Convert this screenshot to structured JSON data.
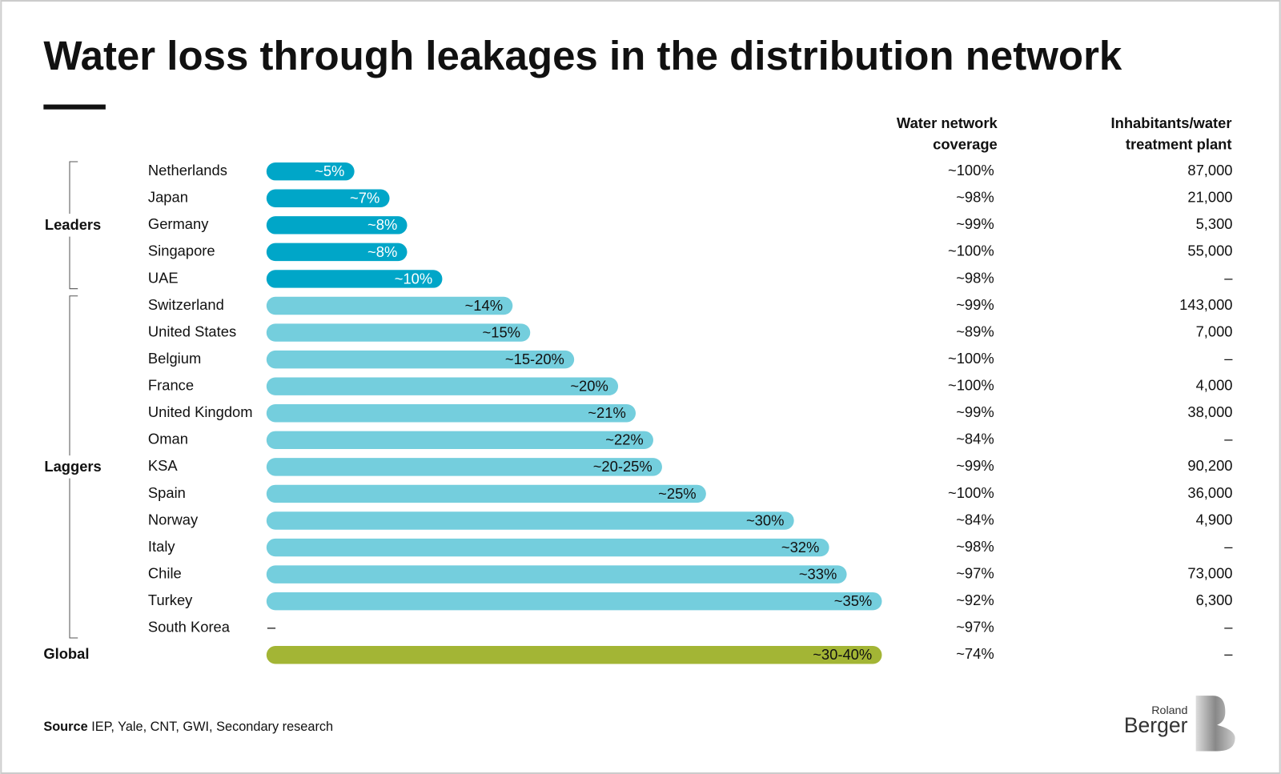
{
  "chart_data": {
    "type": "bar",
    "title": "Water loss through leakages in the distribution network",
    "categories": [
      "Netherlands",
      "Japan",
      "Germany",
      "Singapore",
      "UAE",
      "Switzerland",
      "United States",
      "Belgium",
      "France",
      "United Kingdom",
      "Oman",
      "KSA",
      "Spain",
      "Norway",
      "Italy",
      "Chile",
      "Turkey",
      "South Korea",
      "Global"
    ],
    "groups": [
      "Leaders",
      "Laggers"
    ],
    "values": [
      5,
      7,
      8,
      8,
      10,
      14,
      15,
      17.5,
      20,
      21,
      22,
      22.5,
      25,
      30,
      32,
      33,
      35,
      null,
      35
    ],
    "value_labels": [
      "~5%",
      "~7%",
      "~8%",
      "~8%",
      "~10%",
      "~14%",
      "~15%",
      "~15-20%",
      "~20%",
      "~21%",
      "~22%",
      "~20-25%",
      "~25%",
      "~30%",
      "~32%",
      "~33%",
      "~35%",
      "–",
      "~30-40%"
    ],
    "colors": [
      "#00a6c8",
      "#00a6c8",
      "#00a6c8",
      "#00a6c8",
      "#00a6c8",
      "#74cedd",
      "#74cedd",
      "#74cedd",
      "#74cedd",
      "#74cedd",
      "#74cedd",
      "#74cedd",
      "#74cedd",
      "#74cedd",
      "#74cedd",
      "#74cedd",
      "#74cedd",
      "#74cedd",
      "#a3b535"
    ],
    "columns": [
      {
        "header": [
          "Water network",
          "coverage"
        ],
        "values": [
          "~100%",
          "~98%",
          "~99%",
          "~100%",
          "~98%",
          "~99%",
          "~89%",
          "~100%",
          "~100%",
          "~99%",
          "~84%",
          "~99%",
          "~100%",
          "~84%",
          "~98%",
          "~97%",
          "~92%",
          "~97%",
          "~74%"
        ]
      },
      {
        "header": [
          "Inhabitants/water",
          "treatment plant"
        ],
        "values": [
          "87,000",
          "21,000",
          "5,300",
          "55,000",
          "–",
          "143,000",
          "7,000",
          "–",
          "4,000",
          "38,000",
          "–",
          "90,200",
          "36,000",
          "4,900",
          "–",
          "73,000",
          "6,300",
          "–",
          "–"
        ]
      }
    ],
    "source_label": "Source",
    "source": "IEP, Yale, CNT, GWI, Secondary research",
    "logo": [
      "Roland",
      "Berger"
    ]
  }
}
